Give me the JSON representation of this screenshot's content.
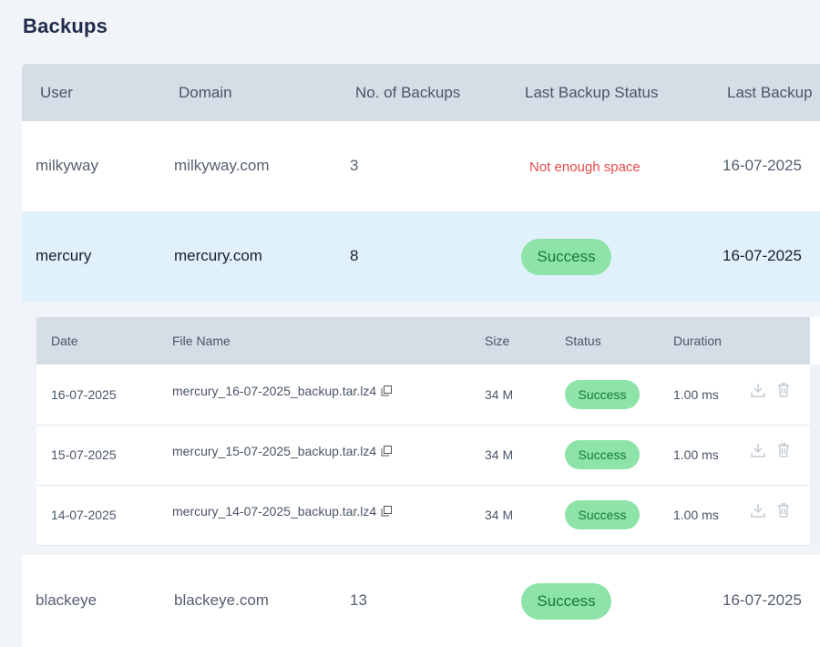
{
  "page": {
    "title": "Backups"
  },
  "table": {
    "headers": [
      "User",
      "Domain",
      "No. of Backups",
      "Last Backup Status",
      "Last Backup"
    ],
    "rows": [
      {
        "user": "milkyway",
        "domain": "milkyway.com",
        "count": "3",
        "status": "Not enough space",
        "status_type": "error",
        "last": "16-07-2025"
      },
      {
        "user": "mercury",
        "domain": "mercury.com",
        "count": "8",
        "status": "Success",
        "status_type": "success",
        "last": "16-07-2025"
      },
      {
        "user": "blackeye",
        "domain": "blackeye.com",
        "count": "13",
        "status": "Success",
        "status_type": "success",
        "last": "16-07-2025"
      }
    ]
  },
  "details": {
    "headers": [
      "Date",
      "File Name",
      "Size",
      "Status",
      "Duration"
    ],
    "rows": [
      {
        "date": "16-07-2025",
        "file": "mercury_16-07-2025_backup.tar.lz4",
        "size": "34 M",
        "status": "Success",
        "duration": "1.00 ms"
      },
      {
        "date": "15-07-2025",
        "file": "mercury_15-07-2025_backup.tar.lz4",
        "size": "34 M",
        "status": "Success",
        "duration": "1.00 ms"
      },
      {
        "date": "14-07-2025",
        "file": "mercury_14-07-2025_backup.tar.lz4",
        "size": "34 M",
        "status": "Success",
        "duration": "1.00 ms"
      }
    ],
    "icons": [
      "copy-icon",
      "download-icon",
      "trash-icon"
    ]
  },
  "colors": {
    "success_bg": "#8ee4a8",
    "success_text": "#147a3b",
    "error_text": "#e54b4b",
    "expanded_row_bg": "#e0f1fb",
    "header_bg": "#d5dee6"
  }
}
